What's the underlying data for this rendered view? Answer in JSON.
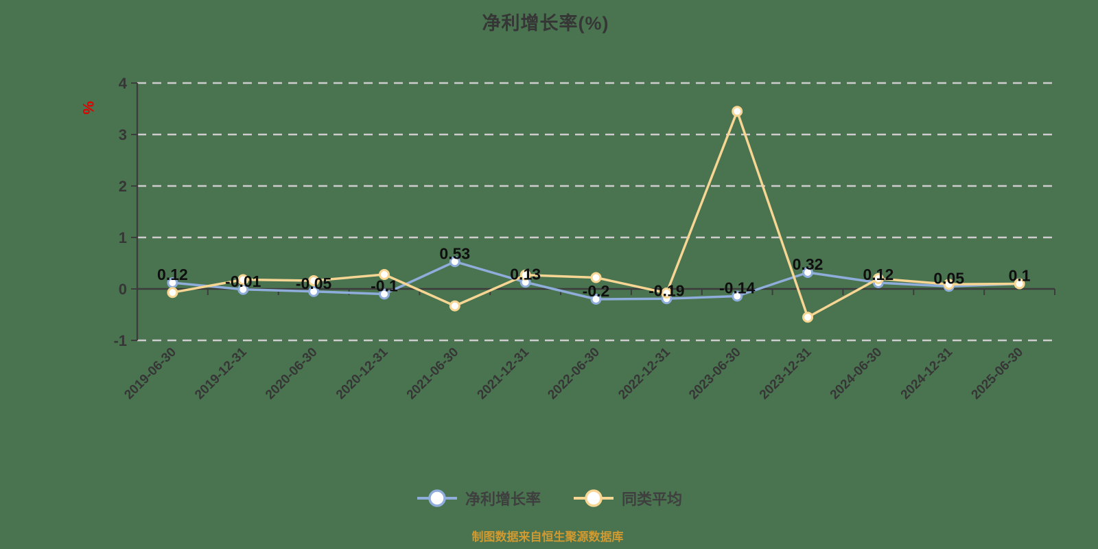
{
  "caption": {
    "text": "制图数据来自恒生聚源数据库"
  },
  "colors": {
    "bg": "#4a7350",
    "ink": "#363636",
    "grid": "#cdcdcd",
    "axis": "#3c3c3c",
    "blue": "#8fadda",
    "yellow": "#f7d694",
    "unit": "#e10000",
    "caption": "#d09a31",
    "label": "#0f0f0f"
  },
  "chart_data": {
    "type": "line",
    "title": "净利增长率(%)",
    "ylabel": "%",
    "xlabel": "",
    "categories": [
      "2019-06-30",
      "2019-12-31",
      "2020-06-30",
      "2020-12-31",
      "2021-06-30",
      "2021-12-31",
      "2022-06-30",
      "2022-12-31",
      "2023-06-30",
      "2023-12-31",
      "2024-06-30",
      "2024-12-31",
      "2025-06-30"
    ],
    "series": [
      {
        "name": "净利增长率",
        "color_key": "blue",
        "values": [
          0.12,
          -0.01,
          -0.05,
          -0.1,
          0.53,
          0.13,
          -0.2,
          -0.19,
          -0.14,
          0.32,
          0.12,
          0.05,
          0.1
        ],
        "labels": [
          "0.12",
          "-0.01",
          "-0.05",
          "-0.1",
          "0.53",
          "0.13",
          "-0.2",
          "-0.19",
          "-0.14",
          "0.32",
          "0.12",
          "0.05",
          "0.1"
        ],
        "show_labels": true
      },
      {
        "name": "同类平均",
        "color_key": "yellow",
        "values": [
          -0.07,
          0.18,
          0.16,
          0.28,
          -0.33,
          0.27,
          0.22,
          -0.08,
          3.45,
          -0.55,
          0.2,
          0.09,
          0.1
        ],
        "labels": [],
        "show_labels": false
      }
    ],
    "ylim": [
      -1,
      4
    ],
    "yticks": [
      4,
      3,
      2,
      1,
      0,
      -1
    ],
    "grid": "dashed horizontal",
    "x_axis_on_zero": true,
    "legend_position": "bottom"
  }
}
